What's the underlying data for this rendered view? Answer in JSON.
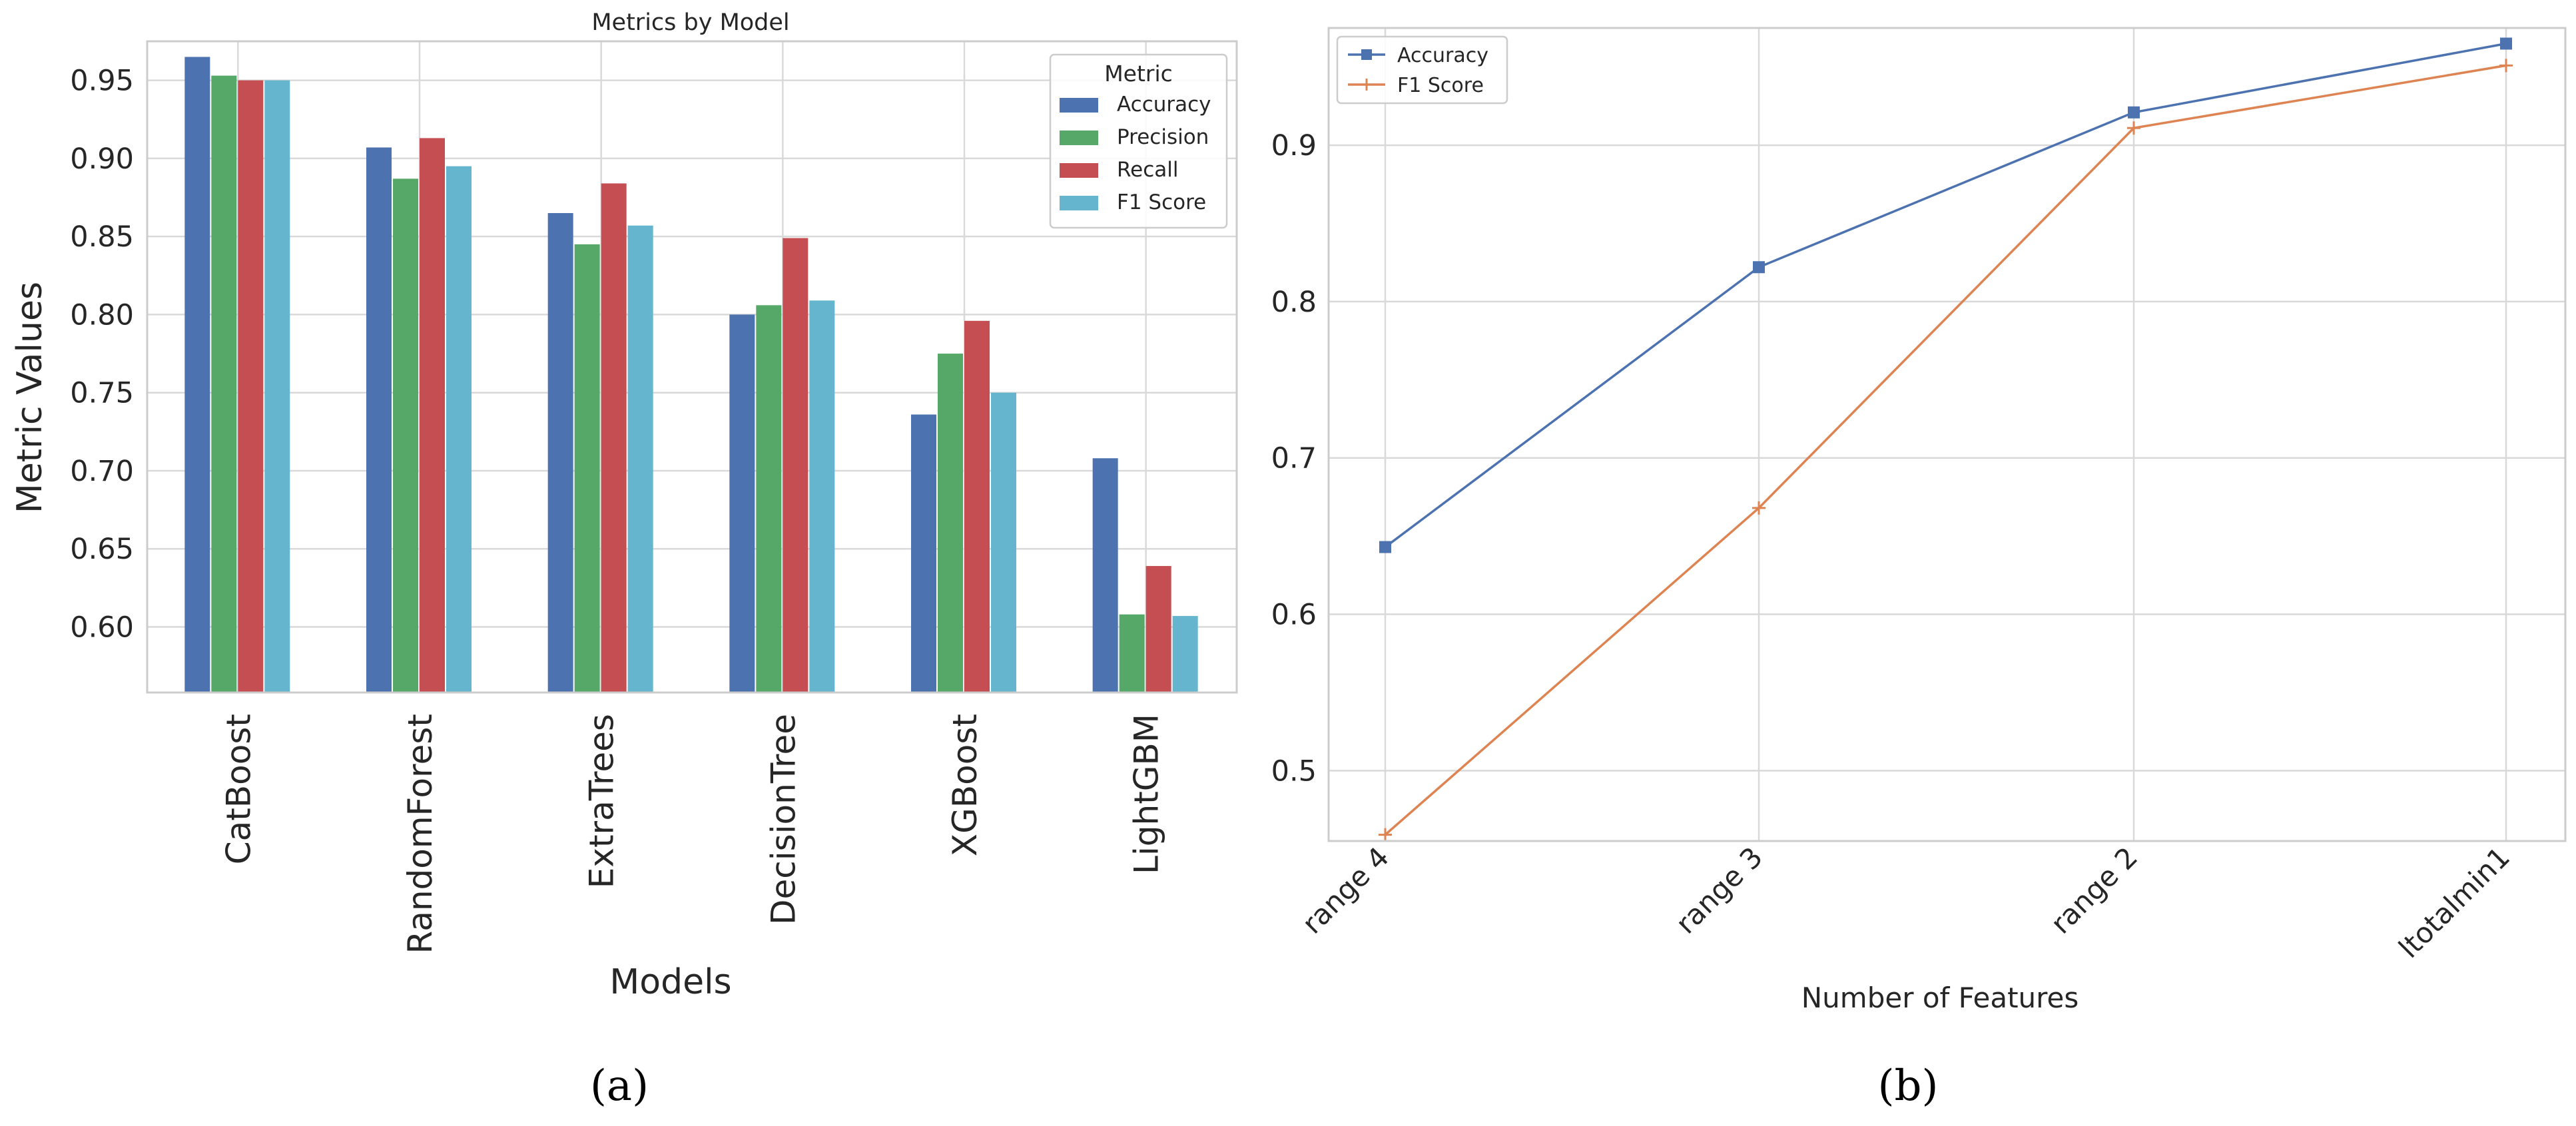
{
  "figure": {
    "panel_a_label": "(a)",
    "panel_b_label": "(b)"
  },
  "chart_data": [
    {
      "type": "bar",
      "title": "Metrics by Model",
      "xlabel": "Models",
      "ylabel": "Metric Values",
      "categories": [
        "CatBoost",
        "RandomForest",
        "ExtraTrees",
        "DecisionTree",
        "XGBoost",
        "LightGBM"
      ],
      "series": [
        {
          "name": "Accuracy",
          "color": "#4c72b0",
          "values": [
            0.965,
            0.907,
            0.865,
            0.8,
            0.736,
            0.708
          ]
        },
        {
          "name": "Precision",
          "color": "#55a868",
          "values": [
            0.953,
            0.887,
            0.845,
            0.806,
            0.775,
            0.608
          ]
        },
        {
          "name": "Recall",
          "color": "#c44e52",
          "values": [
            0.95,
            0.913,
            0.884,
            0.849,
            0.796,
            0.639
          ]
        },
        {
          "name": "F1 Score",
          "color": "#64b5cd",
          "values": [
            0.95,
            0.895,
            0.857,
            0.809,
            0.75,
            0.607
          ]
        }
      ],
      "ylim": [
        0.558,
        0.975
      ],
      "yticks": [
        0.6,
        0.65,
        0.7,
        0.75,
        0.8,
        0.85,
        0.9,
        0.95
      ],
      "ytick_labels": [
        "0.60",
        "0.65",
        "0.70",
        "0.75",
        "0.80",
        "0.85",
        "0.90",
        "0.95"
      ],
      "grid": true,
      "legend": {
        "title": "Metric",
        "placement": "top-right"
      }
    },
    {
      "type": "line",
      "title": "",
      "xlabel": "Number of Features",
      "ylabel": "",
      "categories": [
        "range 4",
        "range 3",
        "range 2",
        "ltotalmin1"
      ],
      "series": [
        {
          "name": "Accuracy",
          "color": "#4c72b0",
          "marker": "square",
          "values": [
            0.643,
            0.822,
            0.921,
            0.965
          ]
        },
        {
          "name": "F1 Score",
          "color": "#dd8452",
          "marker": "plus",
          "values": [
            0.459,
            0.668,
            0.911,
            0.951
          ]
        }
      ],
      "ylim": [
        0.455,
        0.975
      ],
      "yticks": [
        0.5,
        0.6,
        0.7,
        0.8,
        0.9
      ],
      "ytick_labels": [
        "0.5",
        "0.6",
        "0.7",
        "0.8",
        "0.9"
      ],
      "grid": true,
      "legend": {
        "title": "",
        "placement": "top-left"
      }
    }
  ]
}
